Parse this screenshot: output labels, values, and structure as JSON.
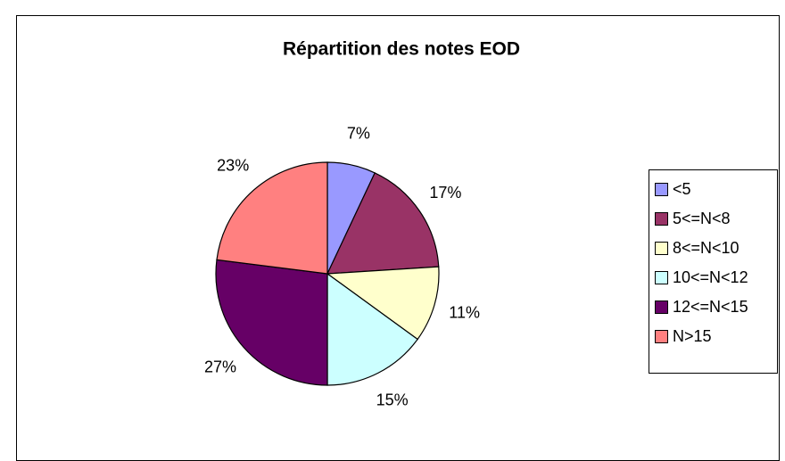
{
  "chart_data": {
    "type": "pie",
    "title": "Répartition des notes EOD",
    "categories": [
      "<5",
      "5<=N<8",
      "8<=N<10",
      "10<=N<12",
      "12<=N<15",
      "N>15"
    ],
    "values": [
      7,
      17,
      11,
      15,
      27,
      23
    ],
    "value_labels": [
      "7%",
      "17%",
      "11%",
      "15%",
      "27%",
      "23%"
    ],
    "colors": [
      "#9999ff",
      "#993366",
      "#ffffcc",
      "#ccffff",
      "#660066",
      "#ff8080"
    ],
    "legend": "right"
  }
}
